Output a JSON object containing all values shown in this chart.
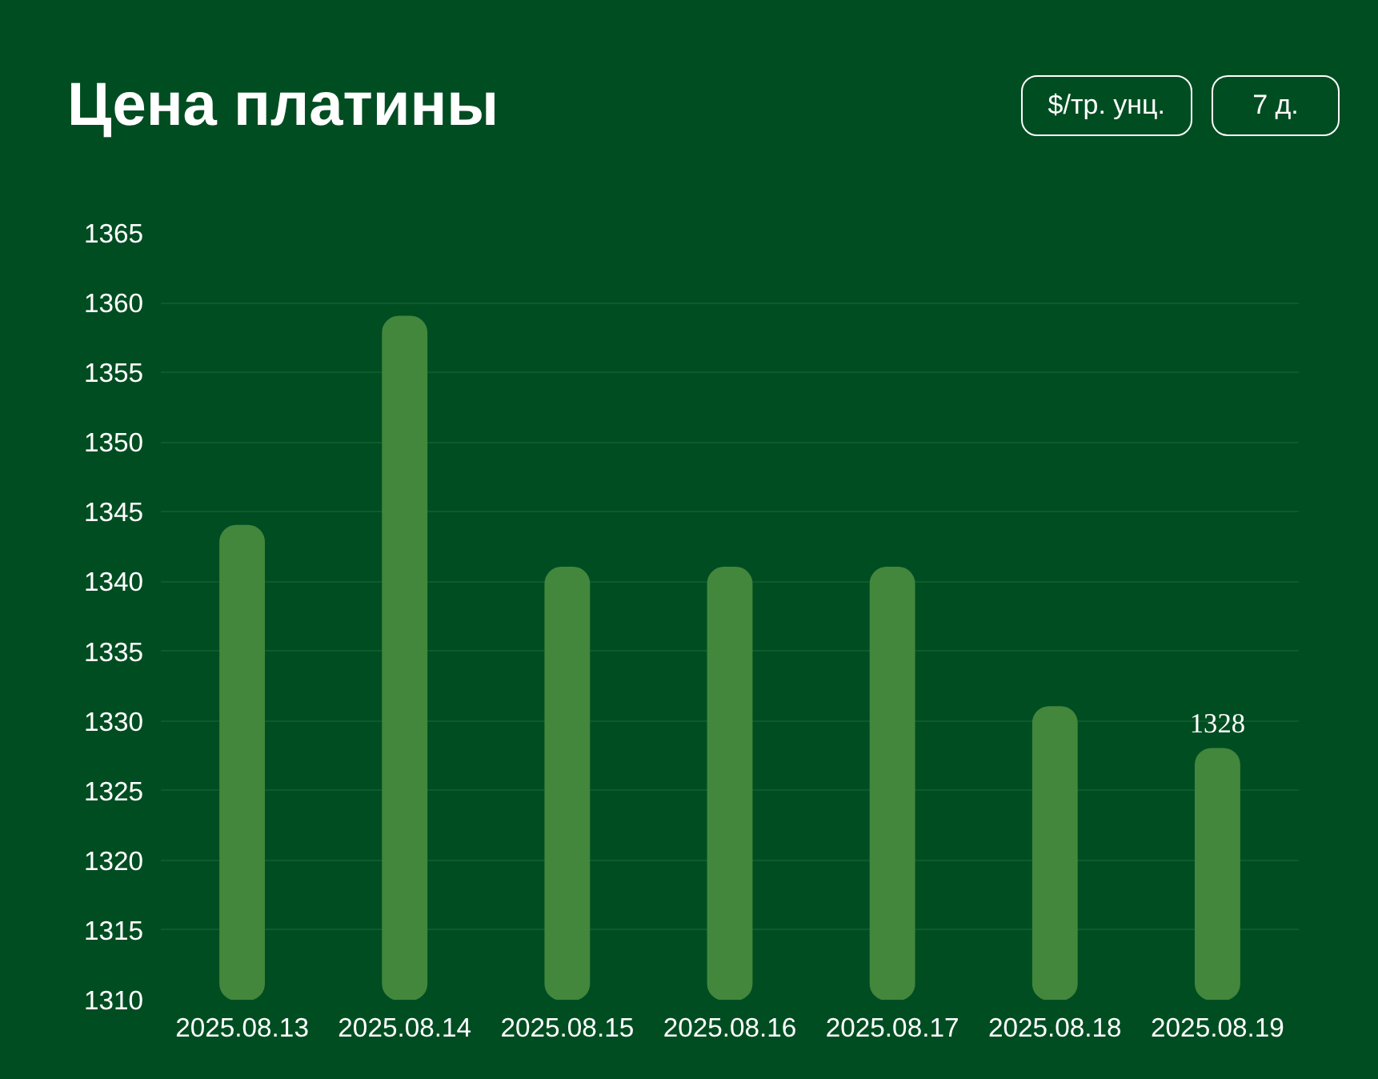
{
  "chart_data": {
    "type": "bar",
    "title": "Цена платины",
    "annotations": [
      "$/тр. унц.",
      "7 д."
    ],
    "categories": [
      "2025.08.13",
      "2025.08.14",
      "2025.08.15",
      "2025.08.16",
      "2025.08.17",
      "2025.08.18",
      "2025.08.19"
    ],
    "values": [
      1344,
      1359,
      1341,
      1341,
      1341,
      1331,
      1328
    ],
    "value_labels": [
      null,
      null,
      null,
      null,
      null,
      null,
      "1328"
    ],
    "color": "#43873c",
    "ylim": [
      1310,
      1365
    ],
    "yticks": [
      1310,
      1315,
      1320,
      1325,
      1330,
      1335,
      1340,
      1345,
      1350,
      1355,
      1360,
      1365
    ],
    "grid": "y"
  }
}
